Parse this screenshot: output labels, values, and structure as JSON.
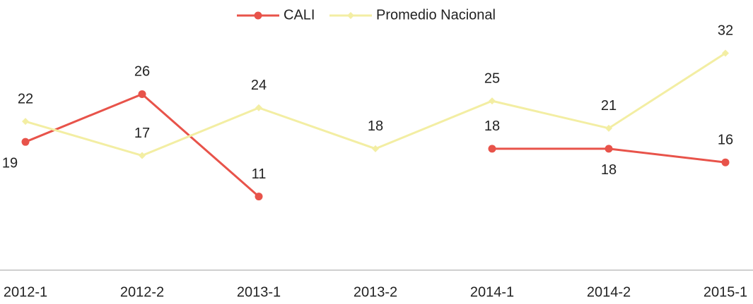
{
  "chart_data": {
    "type": "line",
    "categories": [
      "2012-1",
      "2012-2",
      "2013-1",
      "2013-2",
      "2014-1",
      "2014-2",
      "2015-1"
    ],
    "series": [
      {
        "name": "CALI",
        "color": "#e8534a",
        "values": [
          19,
          26,
          11,
          null,
          18,
          18,
          16
        ]
      },
      {
        "name": "Promedio Nacional",
        "color": "#f3eea3",
        "values": [
          22,
          17,
          24,
          18,
          25,
          21,
          32
        ]
      }
    ],
    "ylim": [
      0,
      40
    ],
    "legend": "top"
  }
}
